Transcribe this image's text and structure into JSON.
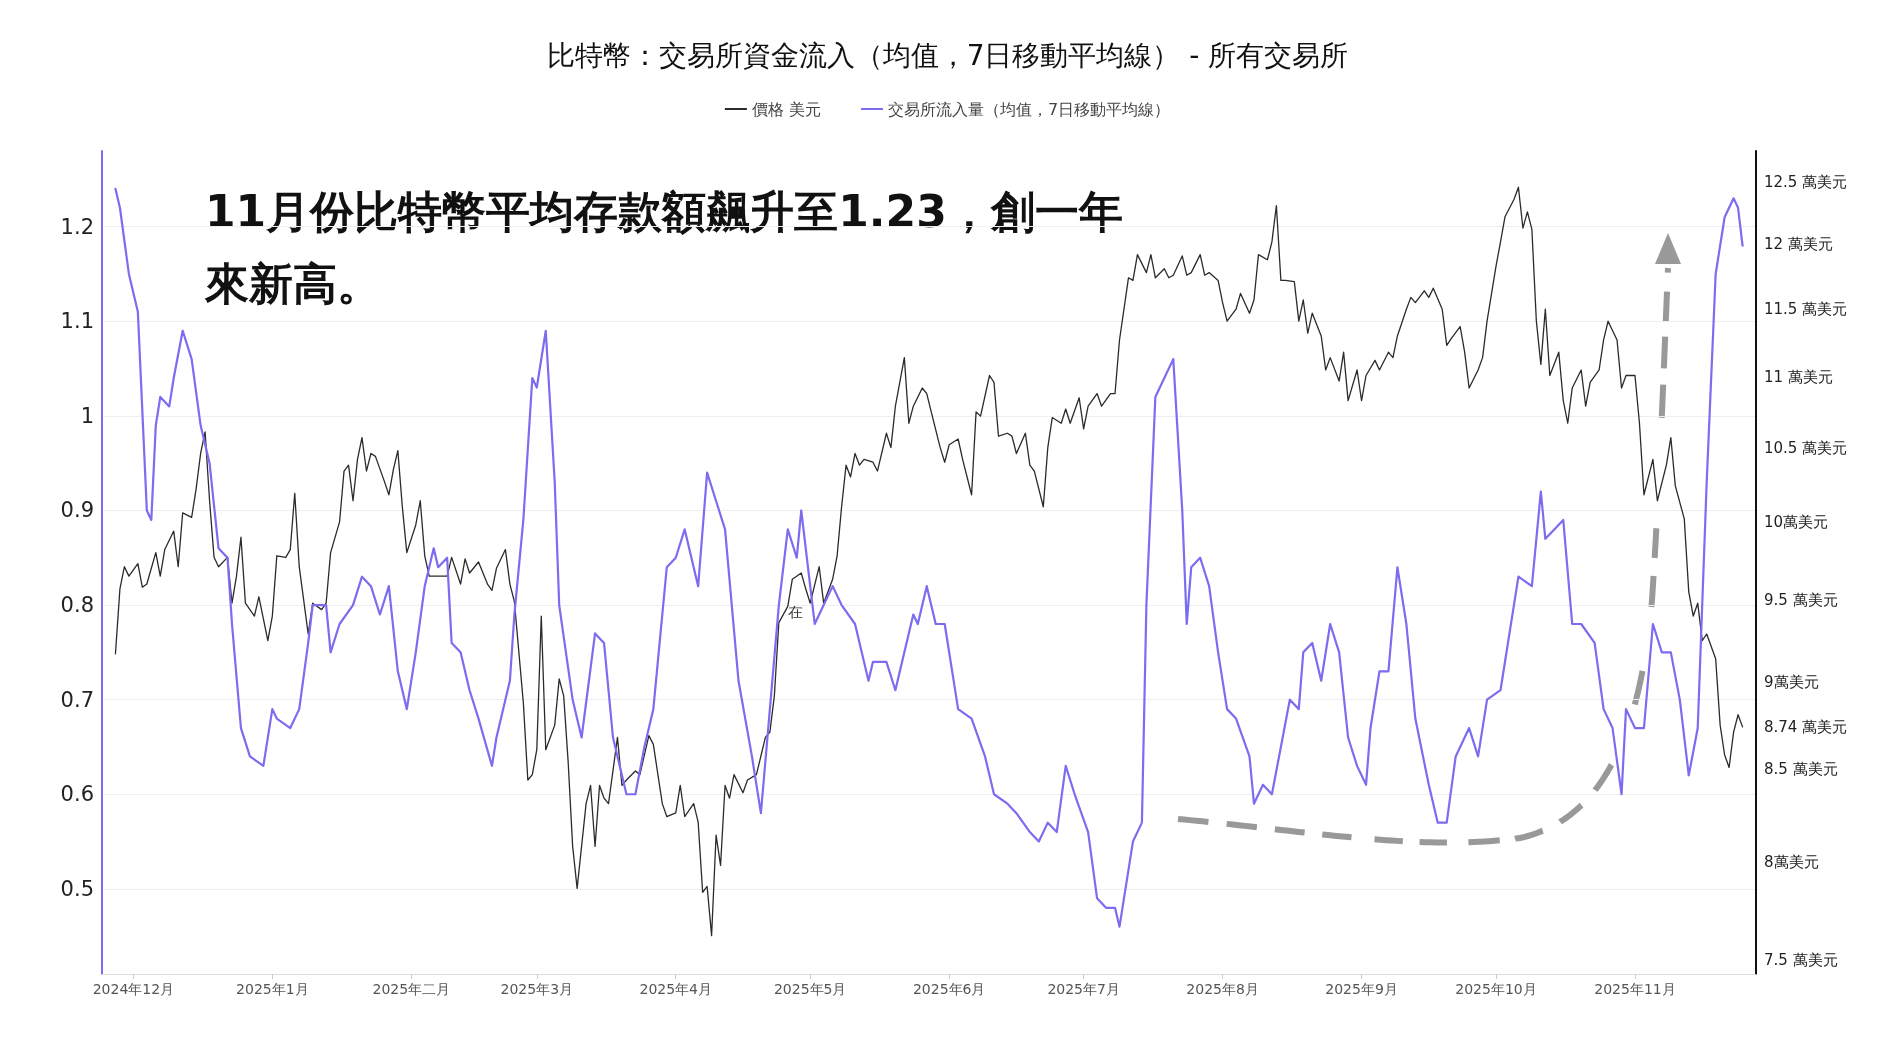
{
  "chart_data": {
    "type": "line",
    "title": "比特幣：交易所資金流入（均值，7日移動平均線） - 所有交易所",
    "legend": "top",
    "grid": "y",
    "marker": "none",
    "line_style": "solid",
    "log": "y2",
    "annotations": [
      "11月份比特幣平均存款額飆升至1.23，創一年來新高。",
      "在"
    ],
    "xlim": [
      "2024-11-24",
      "2025-11-28"
    ],
    "xticks": [
      {
        "value": "2024-12-01",
        "label": "2024年12月"
      },
      {
        "value": "2025-01-01",
        "label": "2025年1月"
      },
      {
        "value": "2025-02-01",
        "label": "2025年二月"
      },
      {
        "value": "2025-03-01",
        "label": "2025年3月"
      },
      {
        "value": "2025-04-01",
        "label": "2025年4月"
      },
      {
        "value": "2025-05-01",
        "label": "2025年5月"
      },
      {
        "value": "2025-06-01",
        "label": "2025年6月"
      },
      {
        "value": "2025-07-01",
        "label": "2025年7月"
      },
      {
        "value": "2025-08-01",
        "label": "2025年8月"
      },
      {
        "value": "2025-09-01",
        "label": "2025年9月"
      },
      {
        "value": "2025-10-01",
        "label": "2025年10月"
      },
      {
        "value": "2025-11-01",
        "label": "2025年11月"
      }
    ],
    "ylim": [
      0.41,
      1.28
    ],
    "yticks": [
      0.5,
      0.6,
      0.7,
      0.8,
      0.9,
      1,
      1.1,
      1.2
    ],
    "y2lim": [
      7.43,
      12.76
    ],
    "y2ticks": [
      {
        "value": 7.5,
        "label": "7.5 萬美元"
      },
      {
        "value": 8,
        "label": "8萬美元"
      },
      {
        "value": 8.5,
        "label": "8.5 萬美元"
      },
      {
        "value": 8.74,
        "label": "8.74 萬美元"
      },
      {
        "value": 9,
        "label": "9萬美元"
      },
      {
        "value": 9.5,
        "label": "9.5 萬美元"
      },
      {
        "value": 10,
        "label": "10萬美元"
      },
      {
        "value": 10.5,
        "label": "10.5 萬美元"
      },
      {
        "value": 11,
        "label": "11 萬美元"
      },
      {
        "value": 11.5,
        "label": "11.5 萬美元"
      },
      {
        "value": 12,
        "label": "12 萬美元"
      },
      {
        "value": 12.5,
        "label": "12.5 萬美元"
      }
    ],
    "series": [
      {
        "name": "價格 美元",
        "color": "#2b2b2b",
        "axis": "y2",
        "x": [
          "2024-11-27",
          "2024-11-28",
          "2024-11-29",
          "2024-11-30",
          "2024-12-02",
          "2024-12-03",
          "2024-12-04",
          "2024-12-06",
          "2024-12-07",
          "2024-12-08",
          "2024-12-10",
          "2024-12-11",
          "2024-12-12",
          "2024-12-14",
          "2024-12-15",
          "2024-12-16",
          "2024-12-17",
          "2024-12-18",
          "2024-12-19",
          "2024-12-20",
          "2024-12-22",
          "2024-12-23",
          "2024-12-24",
          "2024-12-25",
          "2024-12-26",
          "2024-12-28",
          "2024-12-29",
          "2024-12-31",
          "2025-01-01",
          "2025-01-02",
          "2025-01-04",
          "2025-01-05",
          "2025-01-06",
          "2025-01-07",
          "2025-01-09",
          "2025-01-10",
          "2025-01-12",
          "2025-01-13",
          "2025-01-14",
          "2025-01-16",
          "2025-01-17",
          "2025-01-18",
          "2025-01-19",
          "2025-01-20",
          "2025-01-21",
          "2025-01-22",
          "2025-01-23",
          "2025-01-24",
          "2025-01-26",
          "2025-01-27",
          "2025-01-28",
          "2025-01-29",
          "2025-01-30",
          "2025-01-31",
          "2025-02-02",
          "2025-02-03",
          "2025-02-04",
          "2025-02-05",
          "2025-02-07",
          "2025-02-09",
          "2025-02-10",
          "2025-02-12",
          "2025-02-13",
          "2025-02-14",
          "2025-02-16",
          "2025-02-18",
          "2025-02-19",
          "2025-02-20",
          "2025-02-22",
          "2025-02-23",
          "2025-02-24",
          "2025-02-26",
          "2025-02-27",
          "2025-02-28",
          "2025-03-01",
          "2025-03-02",
          "2025-03-03",
          "2025-03-05",
          "2025-03-06",
          "2025-03-07",
          "2025-03-08",
          "2025-03-09",
          "2025-03-10",
          "2025-03-12",
          "2025-03-13",
          "2025-03-14",
          "2025-03-15",
          "2025-03-16",
          "2025-03-17",
          "2025-03-19",
          "2025-03-20",
          "2025-03-21",
          "2025-03-23",
          "2025-03-24",
          "2025-03-26",
          "2025-03-27",
          "2025-03-29",
          "2025-03-30",
          "2025-04-01",
          "2025-04-02",
          "2025-04-03",
          "2025-04-05",
          "2025-04-06",
          "2025-04-07",
          "2025-04-08",
          "2025-04-09",
          "2025-04-10",
          "2025-04-11",
          "2025-04-12",
          "2025-04-13",
          "2025-04-14",
          "2025-04-16",
          "2025-04-17",
          "2025-04-19",
          "2025-04-21",
          "2025-04-22",
          "2025-04-23",
          "2025-04-24",
          "2025-04-26",
          "2025-04-27",
          "2025-04-29",
          "2025-04-30",
          "2025-05-01",
          "2025-05-03",
          "2025-05-04",
          "2025-05-06",
          "2025-05-07",
          "2025-05-08",
          "2025-05-09",
          "2025-05-10",
          "2025-05-11",
          "2025-05-12",
          "2025-05-13",
          "2025-05-15",
          "2025-05-16",
          "2025-05-18",
          "2025-05-19",
          "2025-05-20",
          "2025-05-22",
          "2025-05-23",
          "2025-05-24",
          "2025-05-26",
          "2025-05-27",
          "2025-05-28",
          "2025-05-30",
          "2025-05-31",
          "2025-06-01",
          "2025-06-03",
          "2025-06-04",
          "2025-06-06",
          "2025-06-07",
          "2025-06-08",
          "2025-06-10",
          "2025-06-11",
          "2025-06-12",
          "2025-06-14",
          "2025-06-15",
          "2025-06-16",
          "2025-06-18",
          "2025-06-19",
          "2025-06-20",
          "2025-06-22",
          "2025-06-23",
          "2025-06-24",
          "2025-06-26",
          "2025-06-27",
          "2025-06-28",
          "2025-06-30",
          "2025-07-01",
          "2025-07-02",
          "2025-07-04",
          "2025-07-05",
          "2025-07-07",
          "2025-07-08",
          "2025-07-09",
          "2025-07-11",
          "2025-07-12",
          "2025-07-13",
          "2025-07-15",
          "2025-07-16",
          "2025-07-17",
          "2025-07-19",
          "2025-07-20",
          "2025-07-21",
          "2025-07-23",
          "2025-07-24",
          "2025-07-25",
          "2025-07-27",
          "2025-07-28",
          "2025-07-29",
          "2025-07-31",
          "2025-08-01",
          "2025-08-02",
          "2025-08-04",
          "2025-08-05",
          "2025-08-07",
          "2025-08-08",
          "2025-08-09",
          "2025-08-11",
          "2025-08-12",
          "2025-08-13",
          "2025-08-14",
          "2025-08-15",
          "2025-08-17",
          "2025-08-18",
          "2025-08-19",
          "2025-08-20",
          "2025-08-21",
          "2025-08-23",
          "2025-08-24",
          "2025-08-25",
          "2025-08-27",
          "2025-08-28",
          "2025-08-29",
          "2025-08-31",
          "2025-09-01",
          "2025-09-02",
          "2025-09-04",
          "2025-09-05",
          "2025-09-07",
          "2025-09-08",
          "2025-09-09",
          "2025-09-11",
          "2025-09-12",
          "2025-09-13",
          "2025-09-15",
          "2025-09-16",
          "2025-09-17",
          "2025-09-19",
          "2025-09-20",
          "2025-09-21",
          "2025-09-23",
          "2025-09-24",
          "2025-09-25",
          "2025-09-27",
          "2025-09-28",
          "2025-09-29",
          "2025-10-01",
          "2025-10-02",
          "2025-10-03",
          "2025-10-05",
          "2025-10-06",
          "2025-10-07",
          "2025-10-08",
          "2025-10-09",
          "2025-10-10",
          "2025-10-11",
          "2025-10-12",
          "2025-10-13",
          "2025-10-15",
          "2025-10-16",
          "2025-10-17",
          "2025-10-18",
          "2025-10-20",
          "2025-10-21",
          "2025-10-22",
          "2025-10-24",
          "2025-10-25",
          "2025-10-26",
          "2025-10-28",
          "2025-10-29",
          "2025-10-30",
          "2025-11-01",
          "2025-11-02",
          "2025-11-03",
          "2025-11-05",
          "2025-11-06",
          "2025-11-07",
          "2025-11-08",
          "2025-11-09",
          "2025-11-10",
          "2025-11-12",
          "2025-11-13",
          "2025-11-14",
          "2025-11-15",
          "2025-11-16",
          "2025-11-17",
          "2025-11-19",
          "2025-11-20",
          "2025-11-21",
          "2025-11-22",
          "2025-11-23",
          "2025-11-24",
          "2025-11-25"
        ],
        "values": [
          9.17,
          9.57,
          9.71,
          9.65,
          9.73,
          9.58,
          9.6,
          9.8,
          9.65,
          9.82,
          9.94,
          9.71,
          10.06,
          10.03,
          10.22,
          10.46,
          10.61,
          10.14,
          9.77,
          9.71,
          9.77,
          9.48,
          9.65,
          9.9,
          9.48,
          9.4,
          9.52,
          9.25,
          9.4,
          9.78,
          9.77,
          9.82,
          10.19,
          9.71,
          9.29,
          9.48,
          9.44,
          9.48,
          9.8,
          10.0,
          10.34,
          10.38,
          10.14,
          10.42,
          10.57,
          10.34,
          10.46,
          10.44,
          10.27,
          10.18,
          10.35,
          10.48,
          10.1,
          9.8,
          9.98,
          10.14,
          9.78,
          9.65,
          9.65,
          9.65,
          9.77,
          9.6,
          9.76,
          9.67,
          9.74,
          9.6,
          9.56,
          9.7,
          9.82,
          9.6,
          9.49,
          8.88,
          8.44,
          8.47,
          8.61,
          9.4,
          8.61,
          8.75,
          9.02,
          8.92,
          8.54,
          8.08,
          7.86,
          8.31,
          8.41,
          8.08,
          8.41,
          8.34,
          8.31,
          8.68,
          8.41,
          8.44,
          8.49,
          8.47,
          8.69,
          8.64,
          8.31,
          8.24,
          8.26,
          8.41,
          8.24,
          8.31,
          8.21,
          7.84,
          7.87,
          7.62,
          8.14,
          7.98,
          8.41,
          8.34,
          8.47,
          8.37,
          8.44,
          8.47,
          8.68,
          8.71,
          8.92,
          9.36,
          9.46,
          9.63,
          9.67,
          9.57,
          9.48,
          9.71,
          9.48,
          9.63,
          9.78,
          10.1,
          10.38,
          10.3,
          10.46,
          10.38,
          10.42,
          10.4,
          10.34,
          10.6,
          10.5,
          10.79,
          11.14,
          10.67,
          10.79,
          10.92,
          10.88,
          10.75,
          10.5,
          10.4,
          10.52,
          10.56,
          10.42,
          10.18,
          10.75,
          10.72,
          11.01,
          10.96,
          10.58,
          10.6,
          10.58,
          10.46,
          10.6,
          10.38,
          10.34,
          10.1,
          10.5,
          10.71,
          10.67,
          10.77,
          10.67,
          10.85,
          10.63,
          10.79,
          10.88,
          10.79,
          10.88,
          10.88,
          11.27,
          11.74,
          11.72,
          11.92,
          11.78,
          11.92,
          11.74,
          11.81,
          11.74,
          11.76,
          11.91,
          11.76,
          11.78,
          11.92,
          11.76,
          11.78,
          11.72,
          11.55,
          11.41,
          11.5,
          11.62,
          11.47,
          11.57,
          11.92,
          11.88,
          12.02,
          12.31,
          11.72,
          11.72,
          11.71,
          11.41,
          11.57,
          11.32,
          11.47,
          11.3,
          11.05,
          11.14,
          10.97,
          11.18,
          10.83,
          11.05,
          10.83,
          11.01,
          11.12,
          11.05,
          11.18,
          11.14,
          11.3,
          11.5,
          11.59,
          11.55,
          11.64,
          11.59,
          11.66,
          11.5,
          11.23,
          11.28,
          11.37,
          11.18,
          10.92,
          11.05,
          11.14,
          11.41,
          11.83,
          12.02,
          12.22,
          12.36,
          12.46,
          12.13,
          12.26,
          12.12,
          11.41,
          11.09,
          11.5,
          11.01,
          11.18,
          10.83,
          10.67,
          10.92,
          11.05,
          10.79,
          10.96,
          11.05,
          11.27,
          11.41,
          11.27,
          10.92,
          11.01,
          11.01,
          10.67,
          10.18,
          10.42,
          10.14,
          10.26,
          10.38,
          10.57,
          10.24,
          10.02,
          9.55,
          9.4,
          9.48,
          9.25,
          9.29,
          9.14,
          8.75,
          8.58,
          8.51,
          8.71,
          8.81,
          8.74
        ]
      },
      {
        "name": "交易所流入量（均值，7日移動平均線）",
        "color": "#7b6cf0",
        "x": [
          "2024-11-27",
          "2024-11-28",
          "2024-11-30",
          "2024-12-02",
          "2024-12-04",
          "2024-12-05",
          "2024-12-06",
          "2024-12-07",
          "2024-12-09",
          "2024-12-10",
          "2024-12-12",
          "2024-12-14",
          "2024-12-16",
          "2024-12-18",
          "2024-12-20",
          "2024-12-22",
          "2024-12-23",
          "2024-12-25",
          "2024-12-27",
          "2024-12-30",
          "2025-01-01",
          "2025-01-02",
          "2025-01-05",
          "2025-01-07",
          "2025-01-09",
          "2025-01-10",
          "2025-01-13",
          "2025-01-14",
          "2025-01-16",
          "2025-01-19",
          "2025-01-21",
          "2025-01-23",
          "2025-01-25",
          "2025-01-27",
          "2025-01-29",
          "2025-01-31",
          "2025-02-02",
          "2025-02-04",
          "2025-02-06",
          "2025-02-07",
          "2025-02-09",
          "2025-02-10",
          "2025-02-12",
          "2025-02-14",
          "2025-02-16",
          "2025-02-19",
          "2025-02-20",
          "2025-02-23",
          "2025-02-24",
          "2025-02-26",
          "2025-02-28",
          "2025-03-01",
          "2025-03-03",
          "2025-03-05",
          "2025-03-06",
          "2025-03-09",
          "2025-03-11",
          "2025-03-14",
          "2025-03-16",
          "2025-03-18",
          "2025-03-21",
          "2025-03-23",
          "2025-03-25",
          "2025-03-27",
          "2025-03-30",
          "2025-04-01",
          "2025-04-03",
          "2025-04-06",
          "2025-04-08",
          "2025-04-10",
          "2025-04-12",
          "2025-04-15",
          "2025-04-18",
          "2025-04-20",
          "2025-04-22",
          "2025-04-24",
          "2025-04-26",
          "2025-04-28",
          "2025-04-29",
          "2025-05-01",
          "2025-05-02",
          "2025-05-04",
          "2025-05-06",
          "2025-05-08",
          "2025-05-11",
          "2025-05-14",
          "2025-05-15",
          "2025-05-18",
          "2025-05-20",
          "2025-05-22",
          "2025-05-24",
          "2025-05-25",
          "2025-05-27",
          "2025-05-29",
          "2025-05-31",
          "2025-06-03",
          "2025-06-06",
          "2025-06-09",
          "2025-06-11",
          "2025-06-14",
          "2025-06-16",
          "2025-06-19",
          "2025-06-21",
          "2025-06-23",
          "2025-06-25",
          "2025-06-27",
          "2025-06-29",
          "2025-07-02",
          "2025-07-04",
          "2025-07-06",
          "2025-07-08",
          "2025-07-09",
          "2025-07-12",
          "2025-07-14",
          "2025-07-15",
          "2025-07-17",
          "2025-07-19",
          "2025-07-21",
          "2025-07-23",
          "2025-07-24",
          "2025-07-25",
          "2025-07-27",
          "2025-07-29",
          "2025-07-31",
          "2025-08-02",
          "2025-08-04",
          "2025-08-07",
          "2025-08-08",
          "2025-08-10",
          "2025-08-12",
          "2025-08-14",
          "2025-08-16",
          "2025-08-18",
          "2025-08-19",
          "2025-08-21",
          "2025-08-23",
          "2025-08-25",
          "2025-08-27",
          "2025-08-29",
          "2025-08-31",
          "2025-09-02",
          "2025-09-03",
          "2025-09-05",
          "2025-09-07",
          "2025-09-09",
          "2025-09-11",
          "2025-09-13",
          "2025-09-16",
          "2025-09-18",
          "2025-09-20",
          "2025-09-22",
          "2025-09-25",
          "2025-09-27",
          "2025-09-29",
          "2025-10-02",
          "2025-10-04",
          "2025-10-06",
          "2025-10-09",
          "2025-10-11",
          "2025-10-12",
          "2025-10-14",
          "2025-10-16",
          "2025-10-18",
          "2025-10-20",
          "2025-10-23",
          "2025-10-25",
          "2025-10-27",
          "2025-10-29",
          "2025-10-30",
          "2025-11-01",
          "2025-11-03",
          "2025-11-05",
          "2025-11-07",
          "2025-11-09",
          "2025-11-11",
          "2025-11-13",
          "2025-11-15",
          "2025-11-17",
          "2025-11-19",
          "2025-11-21",
          "2025-11-23",
          "2025-11-24",
          "2025-11-25"
        ],
        "values": [
          1.24,
          1.22,
          1.15,
          1.11,
          0.9,
          0.89,
          0.99,
          1.02,
          1.01,
          1.04,
          1.09,
          1.06,
          0.99,
          0.95,
          0.86,
          0.85,
          0.78,
          0.67,
          0.64,
          0.63,
          0.69,
          0.68,
          0.67,
          0.69,
          0.76,
          0.8,
          0.8,
          0.75,
          0.78,
          0.8,
          0.83,
          0.82,
          0.79,
          0.82,
          0.73,
          0.69,
          0.75,
          0.82,
          0.86,
          0.84,
          0.85,
          0.76,
          0.75,
          0.71,
          0.68,
          0.63,
          0.66,
          0.72,
          0.79,
          0.89,
          1.04,
          1.03,
          1.09,
          0.93,
          0.8,
          0.7,
          0.66,
          0.77,
          0.76,
          0.66,
          0.6,
          0.6,
          0.65,
          0.69,
          0.84,
          0.85,
          0.88,
          0.82,
          0.94,
          0.91,
          0.88,
          0.72,
          0.64,
          0.58,
          0.69,
          0.8,
          0.88,
          0.85,
          0.9,
          0.82,
          0.78,
          0.8,
          0.82,
          0.8,
          0.78,
          0.72,
          0.74,
          0.74,
          0.71,
          0.75,
          0.79,
          0.78,
          0.82,
          0.78,
          0.78,
          0.69,
          0.68,
          0.64,
          0.6,
          0.59,
          0.58,
          0.56,
          0.55,
          0.57,
          0.56,
          0.63,
          0.6,
          0.56,
          0.49,
          0.48,
          0.48,
          0.46,
          0.55,
          0.57,
          0.8,
          1.02,
          1.04,
          1.06,
          0.9,
          0.78,
          0.84,
          0.85,
          0.82,
          0.75,
          0.69,
          0.68,
          0.64,
          0.59,
          0.61,
          0.6,
          0.65,
          0.7,
          0.69,
          0.75,
          0.76,
          0.72,
          0.78,
          0.75,
          0.66,
          0.63,
          0.61,
          0.67,
          0.73,
          0.73,
          0.84,
          0.78,
          0.68,
          0.61,
          0.57,
          0.57,
          0.64,
          0.67,
          0.64,
          0.7,
          0.71,
          0.77,
          0.83,
          0.82,
          0.92,
          0.87,
          0.88,
          0.89,
          0.78,
          0.78,
          0.76,
          0.69,
          0.67,
          0.6,
          0.69,
          0.67,
          0.67,
          0.78,
          0.75,
          0.75,
          0.7,
          0.62,
          0.67,
          0.93,
          1.15,
          1.21,
          1.23,
          1.22,
          1.18
        ]
      }
    ]
  }
}
